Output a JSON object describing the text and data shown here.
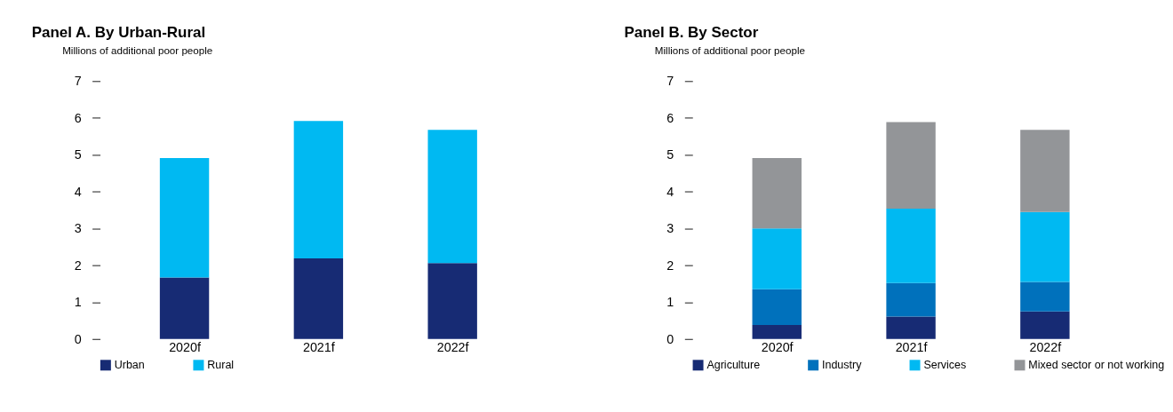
{
  "chart_data": [
    {
      "type": "bar",
      "title": "Panel A. By Urban-Rural",
      "ylabel": "Millions of additional poor people",
      "categories": [
        "2020f",
        "2021f",
        "2022f"
      ],
      "stacked": true,
      "ylim": [
        0,
        7
      ],
      "yticks": [
        0,
        1,
        2,
        3,
        4,
        5,
        6,
        7
      ],
      "grid": false,
      "legend": "bottom left",
      "series": [
        {
          "name": "Urban",
          "color": "#172b74",
          "values": [
            1.67,
            2.19,
            2.06
          ]
        },
        {
          "name": "Rural",
          "color": "#00b9f2",
          "values": [
            3.24,
            3.73,
            3.62
          ]
        }
      ]
    },
    {
      "type": "bar",
      "title": "Panel B. By Sector",
      "ylabel": "Millions of additional poor people",
      "categories": [
        "2020f",
        "2021f",
        "2022f"
      ],
      "stacked": true,
      "ylim": [
        0,
        7
      ],
      "yticks": [
        0,
        1,
        2,
        3,
        4,
        5,
        6,
        7
      ],
      "grid": false,
      "legend": "bottom left",
      "series": [
        {
          "name": "Agriculture",
          "color": "#172b74",
          "values": [
            0.38,
            0.61,
            0.75
          ]
        },
        {
          "name": "Industry",
          "color": "#0071bc",
          "values": [
            0.97,
            0.91,
            0.8
          ]
        },
        {
          "name": "Services",
          "color": "#00b9f2",
          "values": [
            1.65,
            2.02,
            1.9
          ]
        },
        {
          "name": "Mixed sector or not working",
          "color": "#939598",
          "values": [
            1.91,
            2.35,
            2.23
          ]
        }
      ]
    }
  ]
}
